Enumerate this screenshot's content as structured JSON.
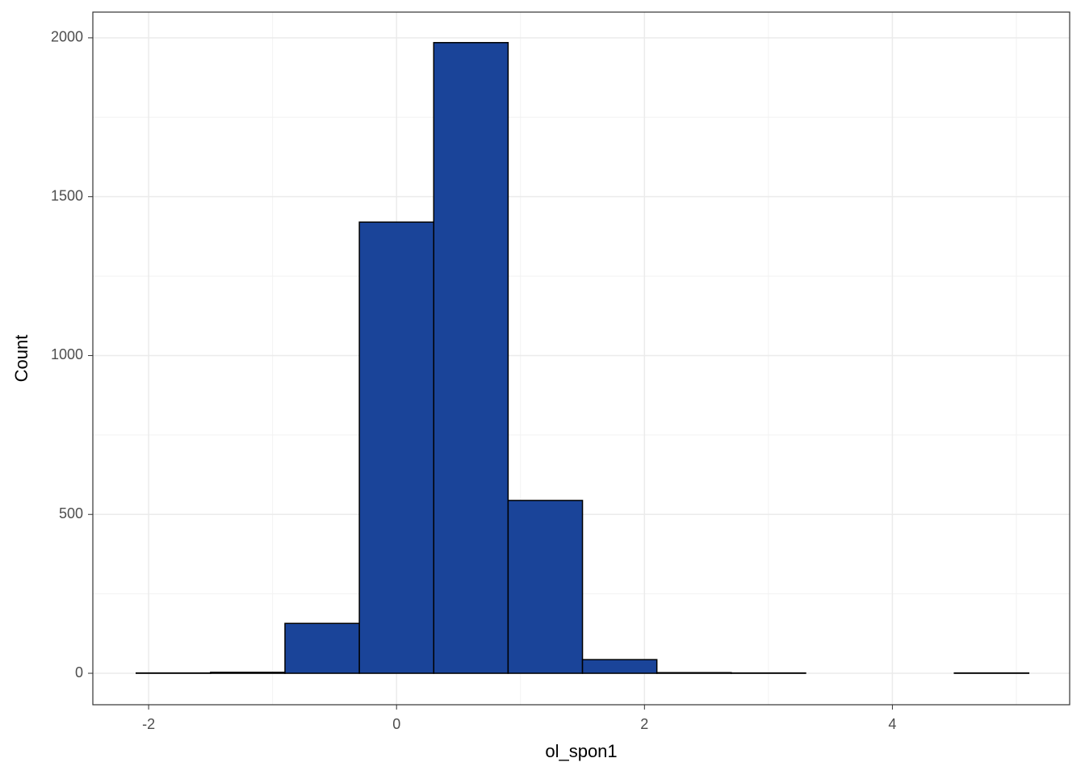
{
  "chart_data": {
    "type": "histogram",
    "x_label": "ol_spon1",
    "y_label": "Count",
    "bins": [
      -2.1,
      -1.5,
      -0.9,
      -0.3,
      0.3,
      0.9,
      1.5,
      2.1,
      2.7,
      3.3,
      3.9,
      4.5,
      5.1
    ],
    "values": [
      1,
      3,
      157,
      1420,
      1985,
      544,
      43,
      2,
      1,
      0,
      0,
      1
    ],
    "color": "#1a4499",
    "edge_color": "#000000",
    "xlim": [
      -2.45,
      5.43
    ],
    "ylim": [
      -99,
      2081
    ],
    "xticks": [
      -2,
      0,
      2,
      4
    ],
    "yticks": [
      0,
      500,
      1000,
      1500,
      2000
    ],
    "x_minor_ticks": [
      -1,
      1,
      3,
      5
    ],
    "y_minor_ticks": [
      250,
      750,
      1250,
      1750
    ],
    "grid": true
  }
}
